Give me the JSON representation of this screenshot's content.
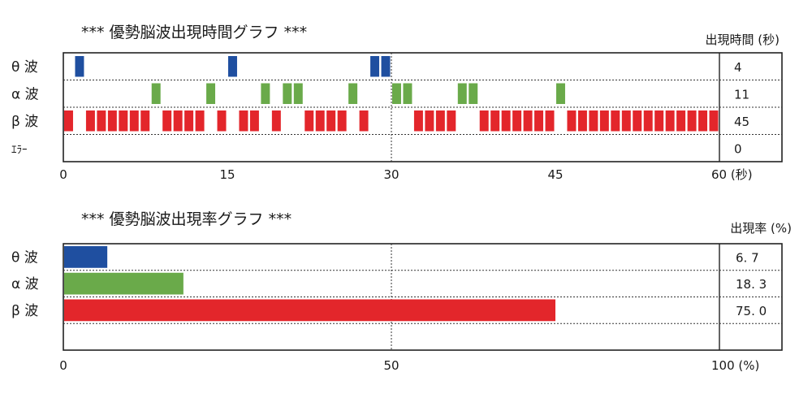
{
  "chart_data": [
    {
      "type": "timeline",
      "title": "*** 優勢脳波出現時間グラフ ***",
      "value_header": "出現時間 (秒)",
      "xlim": [
        0,
        60
      ],
      "x_ticks": [
        "0",
        "15",
        "30",
        "45",
        "60 (秒)"
      ],
      "x_tick_values": [
        0,
        15,
        30,
        45,
        60
      ],
      "gridlines": [
        30
      ],
      "series": [
        {
          "name": "θ 波",
          "color": "#1f4fa0",
          "total": "4",
          "intervals": [
            [
              1,
              2
            ],
            [
              15,
              16
            ],
            [
              28,
              29
            ],
            [
              29,
              30
            ]
          ]
        },
        {
          "name": "α 波",
          "color": "#6aaa4a",
          "total": "11",
          "intervals": [
            [
              8,
              9
            ],
            [
              13,
              14
            ],
            [
              18,
              19
            ],
            [
              20,
              21
            ],
            [
              21,
              22
            ],
            [
              26,
              27
            ],
            [
              30,
              31
            ],
            [
              31,
              32
            ],
            [
              36,
              37
            ],
            [
              37,
              38
            ],
            [
              45,
              46
            ]
          ]
        },
        {
          "name": "β 波",
          "color": "#e3262b",
          "total": "45",
          "intervals": [
            [
              0,
              1
            ],
            [
              2,
              3
            ],
            [
              3,
              4
            ],
            [
              4,
              5
            ],
            [
              5,
              6
            ],
            [
              6,
              7
            ],
            [
              7,
              8
            ],
            [
              9,
              10
            ],
            [
              10,
              11
            ],
            [
              11,
              12
            ],
            [
              12,
              13
            ],
            [
              14,
              15
            ],
            [
              16,
              17
            ],
            [
              17,
              18
            ],
            [
              19,
              20
            ],
            [
              22,
              23
            ],
            [
              23,
              24
            ],
            [
              24,
              25
            ],
            [
              25,
              26
            ],
            [
              27,
              28
            ],
            [
              32,
              33
            ],
            [
              33,
              34
            ],
            [
              34,
              35
            ],
            [
              35,
              36
            ],
            [
              38,
              39
            ],
            [
              39,
              40
            ],
            [
              40,
              41
            ],
            [
              41,
              42
            ],
            [
              42,
              43
            ],
            [
              43,
              44
            ],
            [
              44,
              45
            ],
            [
              46,
              47
            ],
            [
              47,
              48
            ],
            [
              48,
              49
            ],
            [
              49,
              50
            ],
            [
              50,
              51
            ],
            [
              51,
              52
            ],
            [
              52,
              53
            ],
            [
              53,
              54
            ],
            [
              54,
              55
            ],
            [
              55,
              56
            ],
            [
              56,
              57
            ],
            [
              57,
              58
            ],
            [
              58,
              59
            ],
            [
              59,
              60
            ]
          ]
        },
        {
          "name": "ｴﾗｰ",
          "color": "#000000",
          "total": "0",
          "intervals": []
        }
      ]
    },
    {
      "type": "bar",
      "orientation": "horizontal",
      "title": "*** 優勢脳波出現率グラフ ***",
      "value_header": "出現率 (%)",
      "xlim": [
        0,
        100
      ],
      "x_ticks": [
        "0",
        "50",
        "100 (%)"
      ],
      "x_tick_values": [
        0,
        50,
        100
      ],
      "gridlines": [
        50
      ],
      "categories": [
        "θ 波",
        "α 波",
        "β 波"
      ],
      "values": [
        6.7,
        18.3,
        75.0
      ],
      "value_labels": [
        "6. 7",
        "18. 3",
        "75. 0"
      ],
      "colors": [
        "#1f4fa0",
        "#6aaa4a",
        "#e3262b"
      ]
    }
  ]
}
